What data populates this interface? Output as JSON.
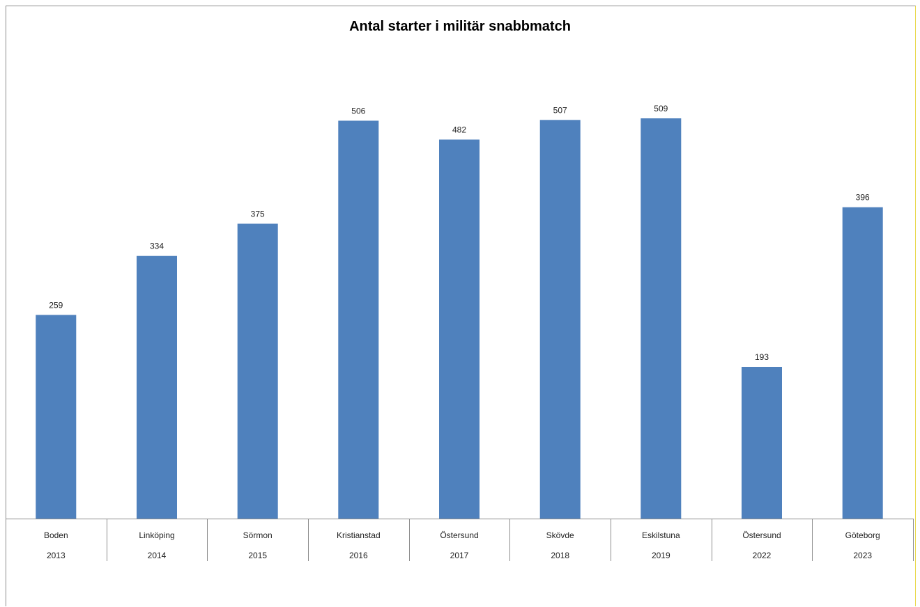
{
  "chart_data": {
    "type": "bar",
    "title": "Antal starter i militär snabbmatch",
    "categories": [
      "Boden",
      "Linköping",
      "Sörmon",
      "Kristianstad",
      "Östersund",
      "Skövde",
      "Eskilstuna",
      "Östersund",
      "Göteborg"
    ],
    "years": [
      "2013",
      "2014",
      "2015",
      "2016",
      "2017",
      "2018",
      "2019",
      "2022",
      "2023"
    ],
    "values": [
      259,
      334,
      375,
      506,
      482,
      507,
      509,
      193,
      396
    ],
    "value_labels": [
      "259",
      "334",
      "375",
      "506",
      "482",
      "507",
      "509",
      "193",
      "396"
    ],
    "bar_color": "#4f81bd",
    "grid": false,
    "legend": "none"
  }
}
